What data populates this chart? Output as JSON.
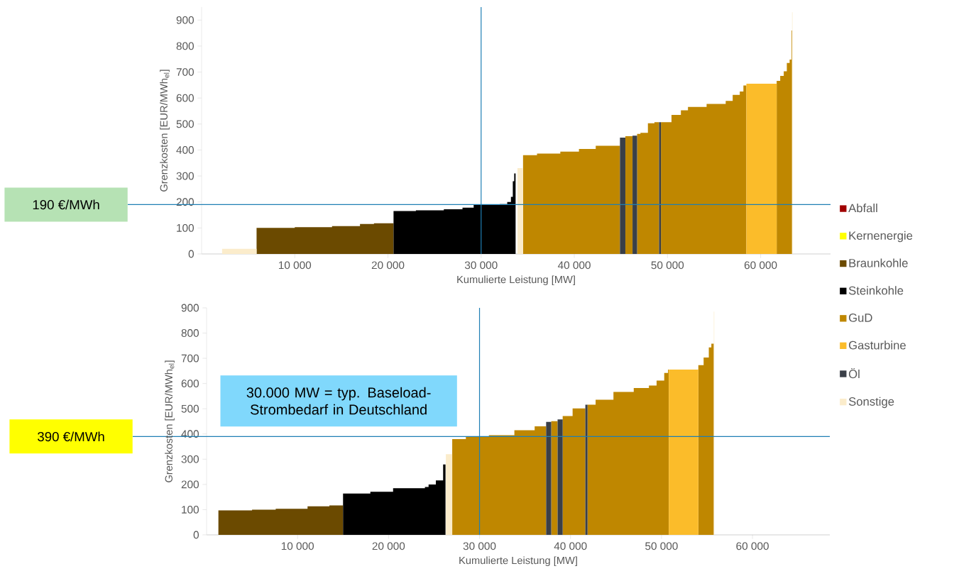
{
  "chart_data": [
    {
      "type": "area",
      "xlabel": "Kumulierte Leistung [MW]",
      "ylabel": "Grenzkosten [EUR/MWh$_{el}$]",
      "xlim": [
        0,
        67500
      ],
      "ylim": [
        0,
        950
      ],
      "xticks": [
        {
          "value": 10000,
          "label": "10 000"
        },
        {
          "value": 20000,
          "label": "20 000"
        },
        {
          "value": 30000,
          "label": "30 000"
        },
        {
          "value": 40000,
          "label": "40 000"
        },
        {
          "value": 50000,
          "label": "50 000"
        },
        {
          "value": 60000,
          "label": "60 000"
        }
      ],
      "yticks": [
        0,
        100,
        200,
        300,
        400,
        500,
        600,
        700,
        800,
        900
      ],
      "legend": "right",
      "series": [
        {
          "name": "Abfall",
          "color": "#a00000"
        },
        {
          "name": "Kernenergie",
          "color": "#ffff00"
        },
        {
          "name": "Braunkohle",
          "color": "#6b4a00",
          "x": [
            5900,
            10000,
            14000,
            17000,
            18500,
            20600
          ],
          "values": [
            100,
            103,
            107,
            115,
            118,
            118
          ]
        },
        {
          "name": "Steinkohle",
          "color": "#000000",
          "x": [
            20600,
            23000,
            26000,
            28000,
            29200,
            32000,
            32800,
            33200,
            33400,
            33550,
            33700
          ],
          "values": [
            165,
            168,
            172,
            178,
            190,
            192,
            200,
            220,
            280,
            310,
            310
          ]
        },
        {
          "name": "GuD",
          "color": "#bf8700",
          "x": [
            34500,
            36000,
            38500,
            40500,
            42300,
            44900,
            45200,
            45480,
            46250,
            46500,
            46740,
            47100,
            47900,
            48600,
            49100,
            49200,
            49300,
            50430,
            51440,
            52200,
            54200,
            56250,
            57000,
            57760,
            58150,
            58470,
            60000,
            61720,
            62100,
            62480,
            62810,
            63110,
            63300,
            63370
          ],
          "values": [
            380,
            386,
            394,
            404,
            416,
            416,
            null,
            453,
            453,
            null,
            462,
            466,
            503,
            507,
            507,
            null,
            507,
            535,
            553,
            566,
            577,
            589,
            612,
            625,
            648,
            648,
            null,
            666,
            685,
            703,
            735,
            748,
            860,
            860
          ]
        },
        {
          "name": "Gasturbine",
          "color": "#fbbc2a",
          "x": [
            58470,
            61720
          ],
          "values": [
            655,
            655
          ]
        },
        {
          "name": "Öl",
          "color": "#3a3f47",
          "x": [
            44900,
            45480,
            45800,
            46250,
            46740,
            48000,
            49100,
            49300
          ],
          "values": [
            448,
            448,
            null,
            455,
            455,
            null,
            507,
            507
          ]
        },
        {
          "name": "Sonstige",
          "color": "#fbeccb",
          "x": [
            2200,
            5900,
            20000,
            33900,
            34500,
            50000,
            63370,
            63420
          ],
          "values": [
            20,
            20,
            null,
            330,
            330,
            null,
            930,
            930
          ]
        }
      ],
      "ref_lines": [
        {
          "axis": "x",
          "value": 30000,
          "color": "#1f7fb4"
        },
        {
          "axis": "y",
          "value": 190,
          "label": "190 €/MWh",
          "color": "#1f7fb4"
        }
      ]
    },
    {
      "type": "area",
      "xlabel": "Kumulierte Leistung [MW]",
      "ylabel": "Grenzkosten [EUR/MWh$_{el}$]",
      "xlim": [
        0,
        68500
      ],
      "ylim": [
        0,
        900
      ],
      "xticks": [
        {
          "value": 10000,
          "label": "10 000"
        },
        {
          "value": 20000,
          "label": "20 000"
        },
        {
          "value": 30000,
          "label": "30 000"
        },
        {
          "value": 40000,
          "label": "40 000"
        },
        {
          "value": 50000,
          "label": "50 000"
        },
        {
          "value": 60000,
          "label": "60 000"
        }
      ],
      "yticks": [
        0,
        100,
        200,
        300,
        400,
        500,
        600,
        700,
        800,
        900
      ],
      "series": [
        {
          "color": "#6b4a00",
          "x": [
            1300,
            5000,
            7600,
            11100,
            13500,
            15000
          ],
          "values": [
            97,
            100,
            103,
            113,
            117,
            117
          ]
        },
        {
          "color": "#000000",
          "x": [
            15000,
            18000,
            20500,
            24000,
            24400,
            25200,
            26000,
            26260
          ],
          "values": [
            164,
            171,
            185,
            190,
            200,
            216,
            279,
            279
          ]
        },
        {
          "color": "#bf8700",
          "x": [
            27000,
            28500,
            31030,
            33830,
            36060,
            37320,
            37500,
            37880,
            38580,
            38800,
            39140,
            40230,
            41630,
            41700,
            41870,
            42760,
            44720,
            46950,
            48620,
            49460,
            50300,
            50720,
            50800,
            52000,
            54050,
            54630,
            55200,
            55480,
            55750
          ],
          "values": [
            380,
            388,
            395,
            415,
            430,
            430,
            null,
            451,
            451,
            null,
            471,
            501,
            501,
            null,
            516,
            536,
            567,
            582,
            592,
            612,
            642,
            655,
            655,
            null,
            673,
            703,
            743,
            758,
            758
          ]
        },
        {
          "color": "#fbbc2a",
          "x": [
            50800,
            54050
          ],
          "values": [
            655,
            655
          ]
        },
        {
          "color": "#3a3f47",
          "x": [
            37320,
            37880,
            38000,
            38580,
            39140,
            40000,
            41630,
            41870
          ],
          "values": [
            448,
            448,
            null,
            458,
            458,
            null,
            516,
            516
          ]
        },
        {
          "color": "#fbeccb",
          "x": [
            26300,
            27000,
            40000,
            55750,
            55800
          ],
          "values": [
            320,
            320,
            null,
            885,
            885
          ]
        }
      ],
      "ref_lines": [
        {
          "axis": "x",
          "value": 30000,
          "color": "#1f7fb4"
        },
        {
          "axis": "y",
          "value": 390,
          "label": "390 €/MWh",
          "color": "#1f7fb4"
        }
      ],
      "annotations": [
        "30.000 MW = typ. Baseload-Strombedarf in Deutschland"
      ]
    }
  ]
}
